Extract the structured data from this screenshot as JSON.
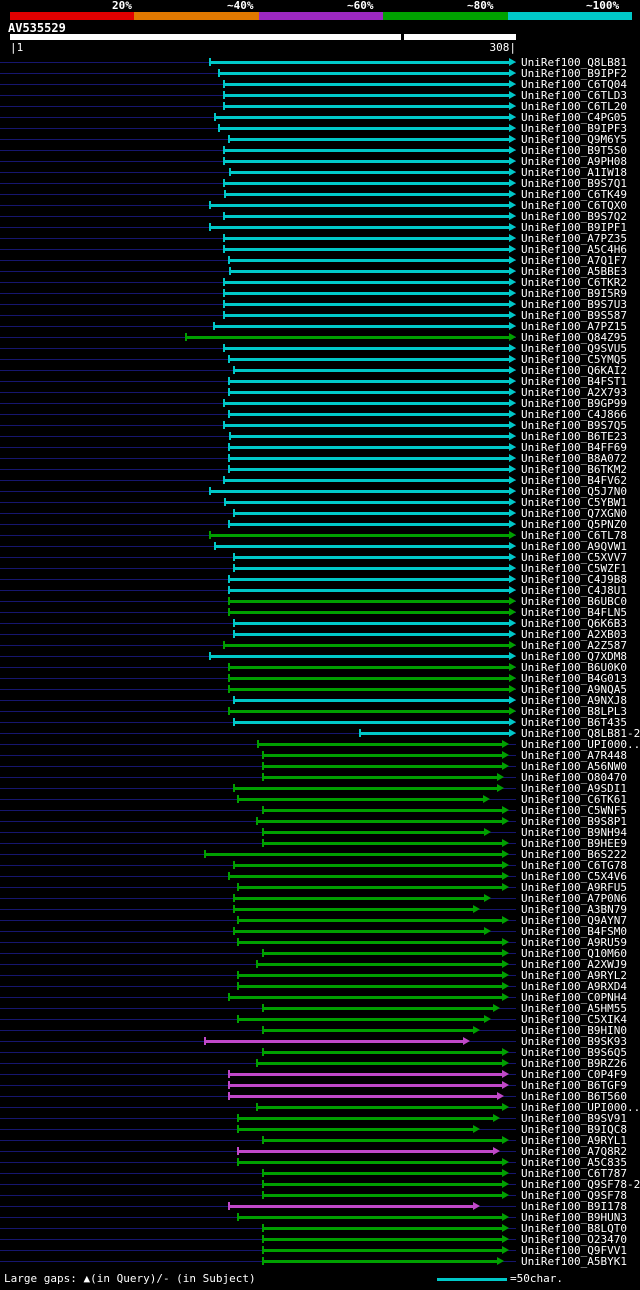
{
  "header": {
    "title": "AV535529"
  },
  "ruler": {
    "start_label": "|1",
    "end_label": "308|"
  },
  "footer": {
    "gaps_note": "Large gaps: ▲(in Query)/- (in Subject)",
    "scale_label": "=50char."
  },
  "colors": {
    "cyan": "#00c8c8",
    "green": "#00a000",
    "magenta": "#c048c8",
    "trace": "#16166e",
    "query_bar": "#ffffff"
  },
  "chart_data": {
    "type": "bar",
    "subtype": "blast-alignment-overview",
    "title": "AV535529",
    "query": {
      "name": "AV535529",
      "start": 1,
      "end": 308,
      "gap_tick": 238
    },
    "identity_scale": [
      {
        "label": "20%",
        "color": "#e00000"
      },
      {
        "label": "~40%",
        "color": "#e07800"
      },
      {
        "label": "~60%",
        "color": "#9c28c0"
      },
      {
        "label": "~80%",
        "color": "#00a000"
      },
      {
        "label": "~100%",
        "color": "#00c8c8"
      }
    ],
    "hits": [
      {
        "label": "UniRef100_Q8LB81",
        "start": 122,
        "end": 308,
        "bin": "cyan"
      },
      {
        "label": "UniRef100_B9IPF2",
        "start": 127,
        "end": 308,
        "bin": "cyan"
      },
      {
        "label": "UniRef100_C6TQ04",
        "start": 130,
        "end": 308,
        "bin": "cyan"
      },
      {
        "label": "UniRef100_C6TLD3",
        "start": 130,
        "end": 308,
        "bin": "cyan"
      },
      {
        "label": "UniRef100_C6TL20",
        "start": 130,
        "end": 308,
        "bin": "cyan"
      },
      {
        "label": "UniRef100_C4PG05",
        "start": 125,
        "end": 308,
        "bin": "cyan"
      },
      {
        "label": "UniRef100_B9IPF3",
        "start": 127,
        "end": 308,
        "bin": "cyan"
      },
      {
        "label": "UniRef100_Q9M6Y5",
        "start": 133,
        "end": 308,
        "bin": "cyan"
      },
      {
        "label": "UniRef100_B9T5S0",
        "start": 130,
        "end": 308,
        "bin": "cyan"
      },
      {
        "label": "UniRef100_A9PH08",
        "start": 130,
        "end": 308,
        "bin": "cyan"
      },
      {
        "label": "UniRef100_A1IW18",
        "start": 134,
        "end": 308,
        "bin": "cyan"
      },
      {
        "label": "UniRef100_B9S7Q1",
        "start": 130,
        "end": 308,
        "bin": "cyan"
      },
      {
        "label": "UniRef100_C6TK49",
        "start": 131,
        "end": 308,
        "bin": "cyan"
      },
      {
        "label": "UniRef100_C6TQX0",
        "start": 122,
        "end": 308,
        "bin": "cyan"
      },
      {
        "label": "UniRef100_B9S7Q2",
        "start": 130,
        "end": 308,
        "bin": "cyan"
      },
      {
        "label": "UniRef100_B9IPF1",
        "start": 122,
        "end": 308,
        "bin": "cyan"
      },
      {
        "label": "UniRef100_A7PZ35",
        "start": 130,
        "end": 308,
        "bin": "cyan"
      },
      {
        "label": "UniRef100_A5C4H6",
        "start": 130,
        "end": 308,
        "bin": "cyan"
      },
      {
        "label": "UniRef100_A7Q1F7",
        "start": 133,
        "end": 308,
        "bin": "cyan"
      },
      {
        "label": "UniRef100_A5BBE3",
        "start": 134,
        "end": 308,
        "bin": "cyan"
      },
      {
        "label": "UniRef100_C6TKR2",
        "start": 130,
        "end": 308,
        "bin": "cyan"
      },
      {
        "label": "UniRef100_B9I5R9",
        "start": 130,
        "end": 308,
        "bin": "cyan"
      },
      {
        "label": "UniRef100_B9S7U3",
        "start": 130,
        "end": 308,
        "bin": "cyan"
      },
      {
        "label": "UniRef100_B9S587",
        "start": 130,
        "end": 308,
        "bin": "cyan"
      },
      {
        "label": "UniRef100_A7PZ15",
        "start": 124,
        "end": 308,
        "bin": "cyan"
      },
      {
        "label": "UniRef100_Q84Z95",
        "start": 107,
        "end": 308,
        "bin": "green"
      },
      {
        "label": "UniRef100_Q9SVU5",
        "start": 130,
        "end": 308,
        "bin": "cyan"
      },
      {
        "label": "UniRef100_C5YMQ5",
        "start": 133,
        "end": 308,
        "bin": "cyan"
      },
      {
        "label": "UniRef100_Q6KAI2",
        "start": 136,
        "end": 308,
        "bin": "cyan"
      },
      {
        "label": "UniRef100_B4FST1",
        "start": 133,
        "end": 308,
        "bin": "cyan"
      },
      {
        "label": "UniRef100_A2X793",
        "start": 133,
        "end": 308,
        "bin": "cyan"
      },
      {
        "label": "UniRef100_B9GP99",
        "start": 130,
        "end": 308,
        "bin": "cyan"
      },
      {
        "label": "UniRef100_C4J866",
        "start": 133,
        "end": 308,
        "bin": "cyan"
      },
      {
        "label": "UniRef100_B9S7Q5",
        "start": 130,
        "end": 308,
        "bin": "cyan"
      },
      {
        "label": "UniRef100_B6TE23",
        "start": 134,
        "end": 308,
        "bin": "cyan"
      },
      {
        "label": "UniRef100_B4FF69",
        "start": 133,
        "end": 308,
        "bin": "cyan"
      },
      {
        "label": "UniRef100_B8A072",
        "start": 133,
        "end": 308,
        "bin": "cyan"
      },
      {
        "label": "UniRef100_B6TKM2",
        "start": 133,
        "end": 308,
        "bin": "cyan"
      },
      {
        "label": "UniRef100_B4FV62",
        "start": 130,
        "end": 308,
        "bin": "cyan"
      },
      {
        "label": "UniRef100_Q5J7N0",
        "start": 122,
        "end": 308,
        "bin": "cyan"
      },
      {
        "label": "UniRef100_C5YBW1",
        "start": 131,
        "end": 308,
        "bin": "cyan"
      },
      {
        "label": "UniRef100_Q7XGN0",
        "start": 136,
        "end": 308,
        "bin": "cyan"
      },
      {
        "label": "UniRef100_Q5PNZ0",
        "start": 133,
        "end": 308,
        "bin": "cyan"
      },
      {
        "label": "UniRef100_C6TL78",
        "start": 122,
        "end": 308,
        "bin": "green"
      },
      {
        "label": "UniRef100_A9QVW1",
        "start": 125,
        "end": 308,
        "bin": "cyan"
      },
      {
        "label": "UniRef100_C5XVV7",
        "start": 136,
        "end": 308,
        "bin": "cyan"
      },
      {
        "label": "UniRef100_C5WZF1",
        "start": 136,
        "end": 308,
        "bin": "cyan"
      },
      {
        "label": "UniRef100_C4J9B8",
        "start": 133,
        "end": 308,
        "bin": "cyan"
      },
      {
        "label": "UniRef100_C4J8U1",
        "start": 133,
        "end": 308,
        "bin": "cyan"
      },
      {
        "label": "UniRef100_B6UBC0",
        "start": 133,
        "end": 308,
        "bin": "green"
      },
      {
        "label": "UniRef100_B4FLN5",
        "start": 133,
        "end": 308,
        "bin": "green"
      },
      {
        "label": "UniRef100_Q6K6B3",
        "start": 136,
        "end": 308,
        "bin": "cyan"
      },
      {
        "label": "UniRef100_A2XB03",
        "start": 136,
        "end": 308,
        "bin": "cyan"
      },
      {
        "label": "UniRef100_A2Z587",
        "start": 130,
        "end": 308,
        "bin": "green"
      },
      {
        "label": "UniRef100_Q7XDM8",
        "start": 122,
        "end": 308,
        "bin": "cyan"
      },
      {
        "label": "UniRef100_B6U0K0",
        "start": 133,
        "end": 308,
        "bin": "green"
      },
      {
        "label": "UniRef100_B4G013",
        "start": 133,
        "end": 308,
        "bin": "green"
      },
      {
        "label": "UniRef100_A9NQA5",
        "start": 133,
        "end": 308,
        "bin": "green"
      },
      {
        "label": "UniRef100_A9NXJ8",
        "start": 136,
        "end": 308,
        "bin": "cyan"
      },
      {
        "label": "UniRef100_B8LPL3",
        "start": 133,
        "end": 308,
        "bin": "green"
      },
      {
        "label": "UniRef100_B6T435",
        "start": 136,
        "end": 308,
        "bin": "cyan"
      },
      {
        "label": "UniRef100_Q8LB81-2",
        "start": 213,
        "end": 308,
        "bin": "cyan"
      },
      {
        "label": "UniRef100_UPI000..",
        "start": 151,
        "end": 304,
        "bin": "green"
      },
      {
        "label": "UniRef100_A7R448",
        "start": 154,
        "end": 304,
        "bin": "green"
      },
      {
        "label": "UniRef100_A56NW0",
        "start": 154,
        "end": 304,
        "bin": "green"
      },
      {
        "label": "UniRef100_O80470",
        "start": 154,
        "end": 301,
        "bin": "green"
      },
      {
        "label": "UniRef100_A9SDI1",
        "start": 136,
        "end": 301,
        "bin": "green"
      },
      {
        "label": "UniRef100_C6TK61",
        "start": 139,
        "end": 292,
        "bin": "green"
      },
      {
        "label": "UniRef100_C5WNF5",
        "start": 154,
        "end": 304,
        "bin": "green"
      },
      {
        "label": "UniRef100_B9S8P1",
        "start": 150,
        "end": 304,
        "bin": "green"
      },
      {
        "label": "UniRef100_B9NH94",
        "start": 154,
        "end": 293,
        "bin": "green"
      },
      {
        "label": "UniRef100_B9HEE9",
        "start": 154,
        "end": 304,
        "bin": "green"
      },
      {
        "label": "UniRef100_B6S222",
        "start": 119,
        "end": 304,
        "bin": "green"
      },
      {
        "label": "UniRef100_C6TG78",
        "start": 136,
        "end": 304,
        "bin": "green"
      },
      {
        "label": "UniRef100_C5X4V6",
        "start": 133,
        "end": 304,
        "bin": "green"
      },
      {
        "label": "UniRef100_A9RFU5",
        "start": 139,
        "end": 304,
        "bin": "green"
      },
      {
        "label": "UniRef100_A7P0N6",
        "start": 136,
        "end": 293,
        "bin": "green"
      },
      {
        "label": "UniRef100_A3BN79",
        "start": 136,
        "end": 286,
        "bin": "green"
      },
      {
        "label": "UniRef100_Q9AYN7",
        "start": 139,
        "end": 304,
        "bin": "green"
      },
      {
        "label": "UniRef100_B4FSM0",
        "start": 136,
        "end": 293,
        "bin": "green"
      },
      {
        "label": "UniRef100_A9RU59",
        "start": 139,
        "end": 304,
        "bin": "green"
      },
      {
        "label": "UniRef100_Q10M60",
        "start": 154,
        "end": 304,
        "bin": "green"
      },
      {
        "label": "UniRef100_A2XWJ9",
        "start": 150,
        "end": 304,
        "bin": "green"
      },
      {
        "label": "UniRef100_A9RYL2",
        "start": 139,
        "end": 304,
        "bin": "green"
      },
      {
        "label": "UniRef100_A9RXD4",
        "start": 139,
        "end": 304,
        "bin": "green"
      },
      {
        "label": "UniRef100_C0PNH4",
        "start": 133,
        "end": 304,
        "bin": "green"
      },
      {
        "label": "UniRef100_A5HM55",
        "start": 154,
        "end": 298,
        "bin": "green"
      },
      {
        "label": "UniRef100_C5XIK4",
        "start": 139,
        "end": 293,
        "bin": "green"
      },
      {
        "label": "UniRef100_B9HIN0",
        "start": 154,
        "end": 286,
        "bin": "green"
      },
      {
        "label": "UniRef100_B9SK93",
        "start": 119,
        "end": 280,
        "bin": "magenta"
      },
      {
        "label": "UniRef100_B9S6Q5",
        "start": 154,
        "end": 304,
        "bin": "green"
      },
      {
        "label": "UniRef100_B9RZ26",
        "start": 150,
        "end": 304,
        "bin": "green"
      },
      {
        "label": "UniRef100_C0P4F9",
        "start": 133,
        "end": 304,
        "bin": "magenta"
      },
      {
        "label": "UniRef100_B6TGF9",
        "start": 133,
        "end": 304,
        "bin": "magenta"
      },
      {
        "label": "UniRef100_B6T560",
        "start": 133,
        "end": 301,
        "bin": "magenta"
      },
      {
        "label": "UniRef100_UPI000..",
        "start": 150,
        "end": 304,
        "bin": "green"
      },
      {
        "label": "UniRef100_B9SV91",
        "start": 139,
        "end": 298,
        "bin": "green"
      },
      {
        "label": "UniRef100_B9IQC8",
        "start": 139,
        "end": 286,
        "bin": "green"
      },
      {
        "label": "UniRef100_A9RYL1",
        "start": 154,
        "end": 304,
        "bin": "green"
      },
      {
        "label": "UniRef100_A7Q8R2",
        "start": 139,
        "end": 298,
        "bin": "magenta"
      },
      {
        "label": "UniRef100_A5C835",
        "start": 139,
        "end": 304,
        "bin": "green"
      },
      {
        "label": "UniRef100_C6T787",
        "start": 154,
        "end": 304,
        "bin": "green"
      },
      {
        "label": "UniRef100_Q9SF78-2",
        "start": 154,
        "end": 304,
        "bin": "green"
      },
      {
        "label": "UniRef100_Q9SF78",
        "start": 154,
        "end": 304,
        "bin": "green"
      },
      {
        "label": "UniRef100_B9I178",
        "start": 133,
        "end": 286,
        "bin": "magenta"
      },
      {
        "label": "UniRef100_B9HUN3",
        "start": 139,
        "end": 304,
        "bin": "green"
      },
      {
        "label": "UniRef100_B8LQT0",
        "start": 154,
        "end": 304,
        "bin": "green"
      },
      {
        "label": "UniRef100_O23470",
        "start": 154,
        "end": 304,
        "bin": "green"
      },
      {
        "label": "UniRef100_Q9FVV1",
        "start": 154,
        "end": 304,
        "bin": "green"
      },
      {
        "label": "UniRef100_A5BYK1",
        "start": 154,
        "end": 301,
        "bin": "green"
      }
    ]
  }
}
